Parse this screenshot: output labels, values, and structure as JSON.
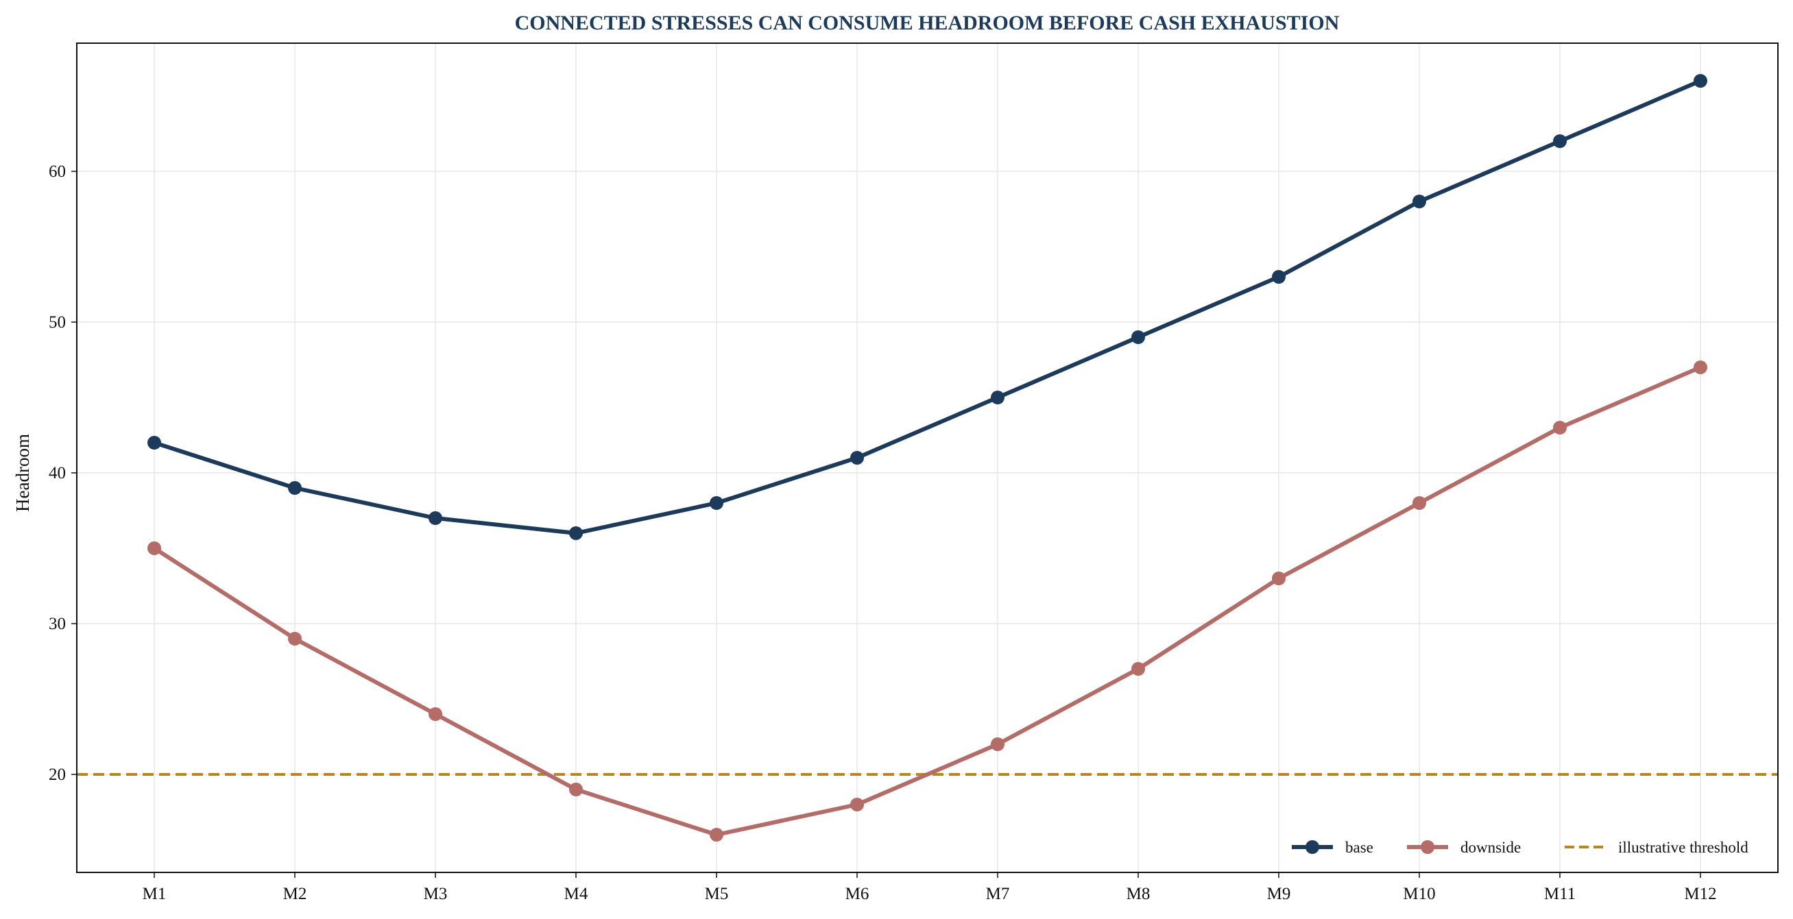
{
  "chart_data": {
    "type": "line",
    "title": "CONNECTED STRESSES CAN CONSUME HEADROOM BEFORE CASH EXHAUSTION",
    "xlabel": "",
    "ylabel": "Headroom",
    "categories": [
      "M1",
      "M2",
      "M3",
      "M4",
      "M5",
      "M6",
      "M7",
      "M8",
      "M9",
      "M10",
      "M11",
      "M12"
    ],
    "yticks": [
      20,
      30,
      40,
      50,
      60
    ],
    "ylim": [
      13.5,
      68.5
    ],
    "grid": true,
    "legend_position": "lower-right",
    "series": [
      {
        "name": "base",
        "color": "#1b3a5c",
        "values": [
          42,
          39,
          37,
          36,
          38,
          41,
          45,
          49,
          53,
          58,
          62,
          66
        ]
      },
      {
        "name": "downside",
        "color": "#b56b66",
        "values": [
          35,
          29,
          24,
          19,
          16,
          18,
          22,
          27,
          33,
          38,
          43,
          47
        ]
      }
    ],
    "threshold": {
      "name": "illustrative threshold",
      "value": 20,
      "color": "#b8861b",
      "style": "dashed"
    }
  }
}
